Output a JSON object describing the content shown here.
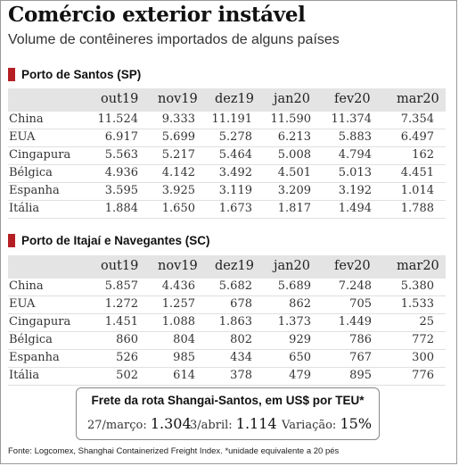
{
  "title": "Comércio exterior instável",
  "subtitle": "Volume de contêineres importados de alguns países",
  "chart_data": [
    {
      "type": "table",
      "title": "Porto de Santos (SP)",
      "columns": [
        "out19",
        "nov19",
        "dez19",
        "jan20",
        "fev20",
        "mar20"
      ],
      "rows": [
        {
          "country": "China",
          "values": [
            "11.524",
            "9.333",
            "11.191",
            "11.590",
            "11.374",
            "7.354"
          ]
        },
        {
          "country": "EUA",
          "values": [
            "6.917",
            "5.699",
            "5.278",
            "6.213",
            "5.883",
            "6.497"
          ]
        },
        {
          "country": "Cingapura",
          "values": [
            "5.563",
            "5.217",
            "5.464",
            "5.008",
            "4.794",
            "162"
          ]
        },
        {
          "country": "Bélgica",
          "values": [
            "4.936",
            "4.142",
            "3.492",
            "4.501",
            "5.013",
            "4.451"
          ]
        },
        {
          "country": "Espanha",
          "values": [
            "3.595",
            "3.925",
            "3.119",
            "3.209",
            "3.192",
            "1.014"
          ]
        },
        {
          "country": "Itália",
          "values": [
            "1.884",
            "1.650",
            "1.673",
            "1.817",
            "1.494",
            "1.788"
          ]
        }
      ]
    },
    {
      "type": "table",
      "title": "Porto de Itajaí e Navegantes (SC)",
      "columns": [
        "out19",
        "nov19",
        "dez19",
        "jan20",
        "fev20",
        "mar20"
      ],
      "rows": [
        {
          "country": "China",
          "values": [
            "5.857",
            "4.436",
            "5.682",
            "5.689",
            "7.248",
            "5.380"
          ]
        },
        {
          "country": "EUA",
          "values": [
            "1.272",
            "1.257",
            "678",
            "862",
            "705",
            "1.533"
          ]
        },
        {
          "country": "Cingapura",
          "values": [
            "1.451",
            "1.088",
            "1.863",
            "1.373",
            "1.449",
            "25"
          ]
        },
        {
          "country": "Bélgica",
          "values": [
            "860",
            "804",
            "802",
            "929",
            "786",
            "772"
          ]
        },
        {
          "country": "Espanha",
          "values": [
            "526",
            "985",
            "434",
            "650",
            "767",
            "300"
          ]
        },
        {
          "country": "Itália",
          "values": [
            "502",
            "614",
            "378",
            "479",
            "895",
            "776"
          ]
        }
      ]
    }
  ],
  "freight": {
    "title": "Frete da rota Shangai-Santos, em US$ por TEU*",
    "items": [
      {
        "label": "27/março:",
        "value": "1.304"
      },
      {
        "label": "3/abril:",
        "value": "1.114"
      },
      {
        "label": "Variação:",
        "value": "15%"
      }
    ]
  },
  "source": "Fonte: Logcomex, Shanghai Containerized Freight Index. *unidade equivalente a 20 pés",
  "colors": {
    "accent": "#b51f24",
    "header_bg": "#e4e4e4"
  }
}
